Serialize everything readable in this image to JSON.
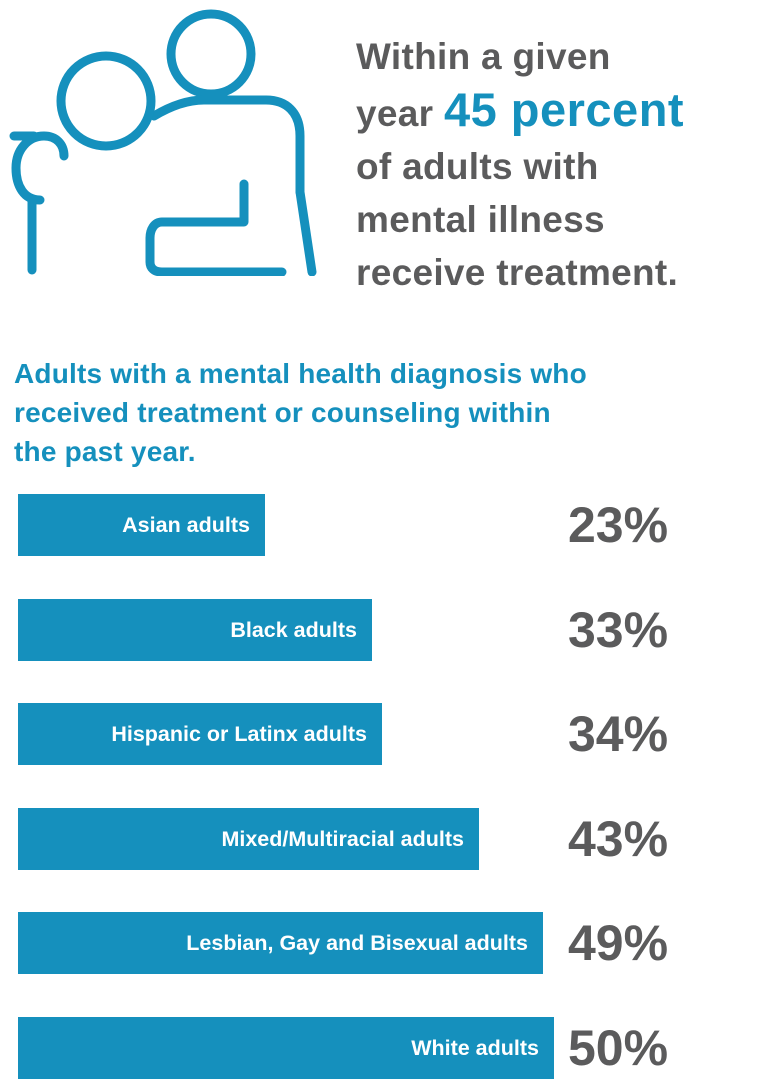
{
  "headline": {
    "line1": "Within a given",
    "line2_prefix": "year",
    "line2_highlight": "45 percent",
    "line3": "of adults with",
    "line4": "mental illness",
    "line5": "receive treatment."
  },
  "colors": {
    "accent": "#1590bd",
    "text_gray": "#5b5b5c",
    "bar_label": "#ffffff",
    "background": "#ffffff"
  },
  "icon": {
    "name": "two-people-support-icon"
  },
  "chart_data": {
    "type": "bar",
    "orientation": "horizontal",
    "title_lines": [
      "Adults with a mental health diagnosis who",
      "received treatment or counseling within",
      "the past year."
    ],
    "categories": [
      "Asian adults",
      "Black adults",
      "Hispanic or Latinx adults",
      "Mixed/Multiracial adults",
      "Lesbian, Gay and Bisexual adults",
      "White adults"
    ],
    "values": [
      23,
      33,
      34,
      43,
      49,
      50
    ],
    "value_labels": [
      "23%",
      "33%",
      "34%",
      "43%",
      "49%",
      "50%"
    ],
    "unit": "%",
    "grid": false,
    "legend": "none"
  }
}
